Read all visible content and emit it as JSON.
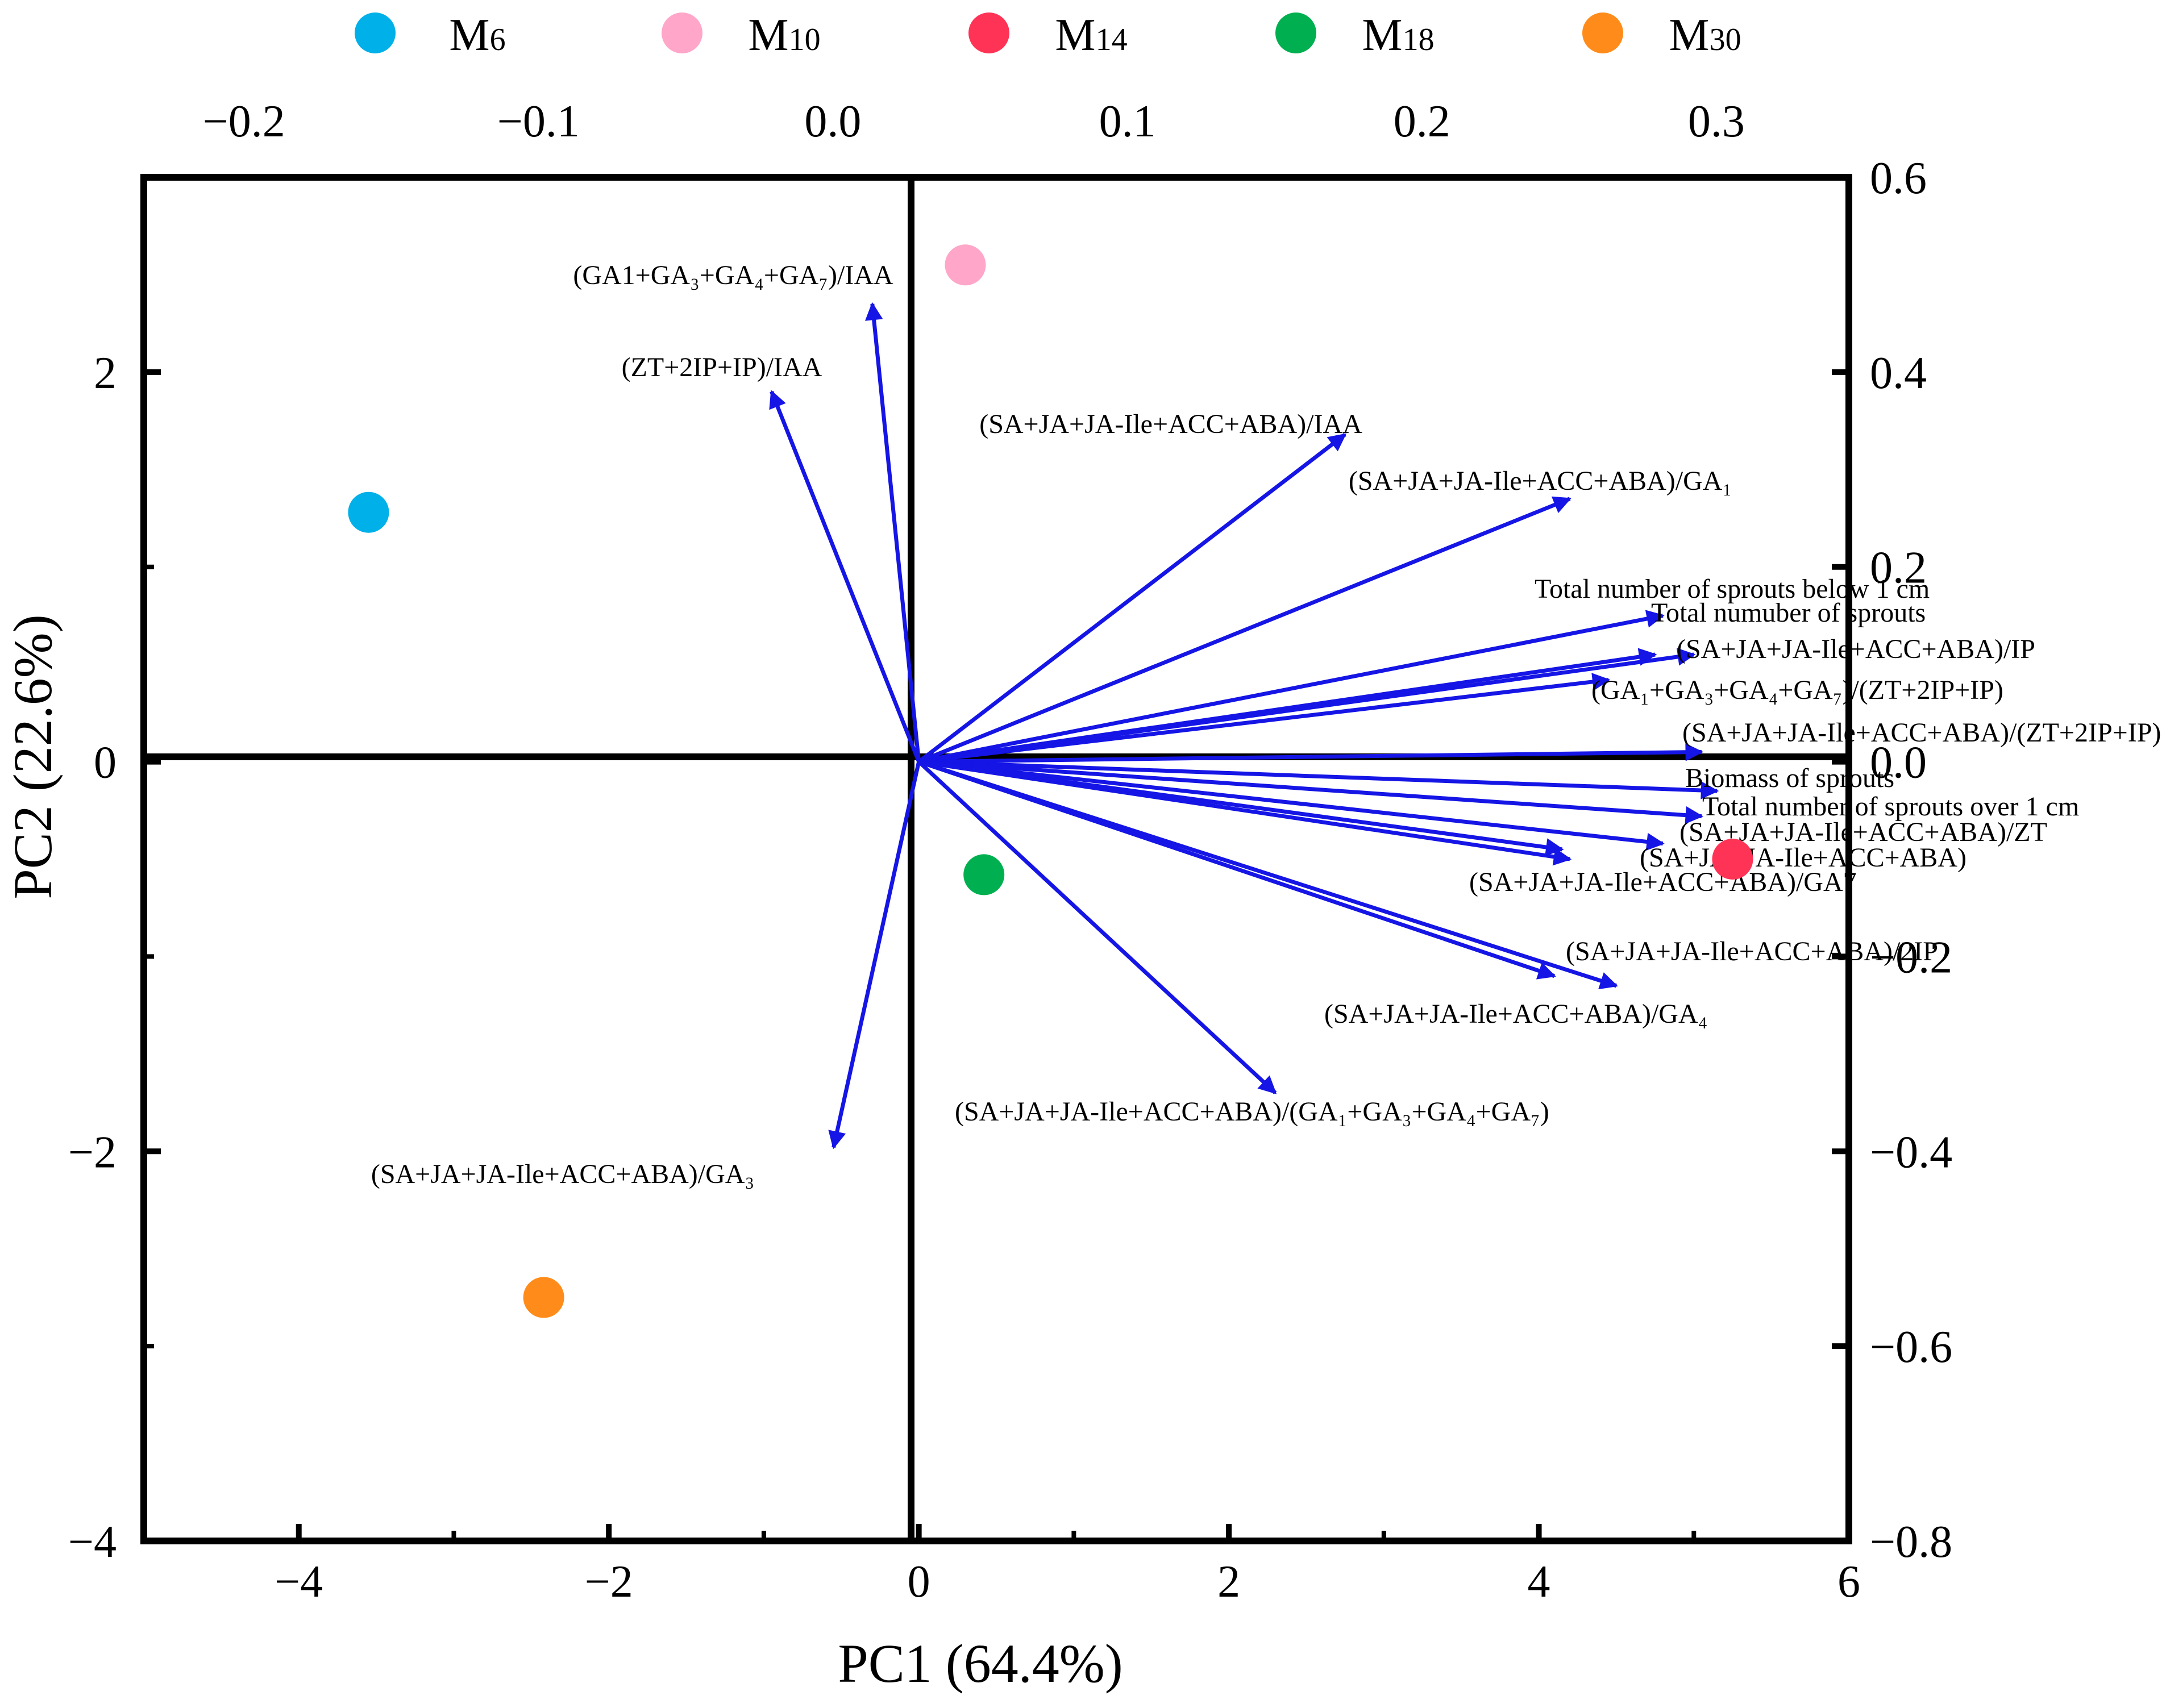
{
  "chart_data": {
    "type": "scatter",
    "subtype": "pca-biplot",
    "xlabel": "PC1 (64.4%)",
    "ylabel": "PC2 (22.6%)",
    "xlim": [
      -5,
      6
    ],
    "ylim": [
      -4,
      3
    ],
    "xticks": [
      -4,
      -2,
      0,
      2,
      4,
      6
    ],
    "xtick_labels": [
      "−4",
      "−2",
      "0",
      "2",
      "4",
      "6"
    ],
    "yticks": [
      -4,
      -2,
      0,
      2
    ],
    "ytick_labels": [
      "−4",
      "−2",
      "0",
      "2"
    ],
    "top_axis": {
      "lim": [
        -0.234,
        0.345
      ],
      "ticks": [
        -0.2,
        -0.1,
        0.0,
        0.1,
        0.2,
        0.3
      ],
      "tick_labels": [
        "−0.2",
        "−0.1",
        "0.0",
        "0.1",
        "0.2",
        "0.3"
      ]
    },
    "right_axis": {
      "lim": [
        -0.8,
        0.6
      ],
      "ticks": [
        0.6,
        0.4,
        0.2,
        0.0,
        -0.2,
        -0.4,
        -0.6,
        -0.8
      ],
      "tick_labels": [
        "0.6",
        "0.4",
        "0.2",
        "0.0",
        "−0.2",
        "−0.4",
        "−0.6",
        "−0.8"
      ]
    },
    "legend": {
      "placement": "top",
      "entries": [
        {
          "label": "M6",
          "color": "#00b0e8"
        },
        {
          "label": "M10",
          "color": "#ffa6c9"
        },
        {
          "label": "M14",
          "color": "#ff3355"
        },
        {
          "label": "M18",
          "color": "#00b050"
        },
        {
          "label": "M30",
          "color": "#ff8c1a"
        }
      ]
    },
    "scores": [
      {
        "name": "M6",
        "x": -3.55,
        "y": 1.28,
        "color": "#00b0e8"
      },
      {
        "name": "M10",
        "x": 0.3,
        "y": 2.55,
        "color": "#ffa6c9"
      },
      {
        "name": "M14",
        "x": 5.25,
        "y": -0.5,
        "color": "#ff3355"
      },
      {
        "name": "M18",
        "x": 0.42,
        "y": -0.58,
        "color": "#00b050"
      },
      {
        "name": "M30",
        "x": -2.42,
        "y": -2.75,
        "color": "#ff8c1a"
      }
    ],
    "loadings_color": "#1515e6",
    "loadings": [
      {
        "label": "(GA1+GA₃+GA₄+GA₇)/IAA",
        "x": -0.3,
        "y": 2.35
      },
      {
        "label": "(ZT+2IP+IP)/IAA",
        "x": -0.95,
        "y": 1.9
      },
      {
        "label": "(SA+JA+JA-Ile+ACC+ABA)/IAA",
        "x": 2.75,
        "y": 1.68
      },
      {
        "label": "(SA+JA+JA-Ile+ACC+ABA)/GA₁",
        "x": 4.2,
        "y": 1.35
      },
      {
        "label": "Total number of sprouts below 1 cm",
        "x": 4.8,
        "y": 0.75
      },
      {
        "label": "Total numuber of sprouts",
        "x": 4.75,
        "y": 0.55
      },
      {
        "label": "(SA+JA+JA-Ile+ACC+ABA)/IP",
        "x": 5.0,
        "y": 0.55
      },
      {
        "label": "(GA₁+GA₃+GA₄+GA₇)/(ZT+2IP+IP)",
        "x": 4.45,
        "y": 0.42
      },
      {
        "label": "(SA+JA+JA-Ile+ACC+ABA)/(ZT+2IP+IP)",
        "x": 5.05,
        "y": 0.05
      },
      {
        "label": "Biomass of sprouts",
        "x": 5.15,
        "y": -0.15
      },
      {
        "label": "Total number of sprouts over 1 cm",
        "x": 5.05,
        "y": -0.28
      },
      {
        "label": "(SA+JA+JA-Ile+ACC+ABA)/ZT",
        "x": 4.8,
        "y": -0.42
      },
      {
        "label": "(SA+JA+JA-Ile+ACC+ABA)",
        "x": 4.2,
        "y": -0.5
      },
      {
        "label": "(SA+JA+JA-Ile+ACC+ABA)/GA7",
        "x": 4.15,
        "y": -0.45
      },
      {
        "label": "(SA+JA+JA-Ile+ACC+ABA)/2IP",
        "x": 4.1,
        "y": -1.1
      },
      {
        "label": "(SA+JA+JA-Ile+ACC+ABA)/GA₄",
        "x": 4.5,
        "y": -1.15
      },
      {
        "label": "(SA+JA+JA-Ile+ACC+ABA)/(GA₁+GA₃+GA₄+GA₇)",
        "x": 2.3,
        "y": -1.7
      },
      {
        "label": "(SA+JA+JA-Ile+ACC+ABA)/GA₃",
        "x": -0.55,
        "y": -1.98
      }
    ]
  }
}
